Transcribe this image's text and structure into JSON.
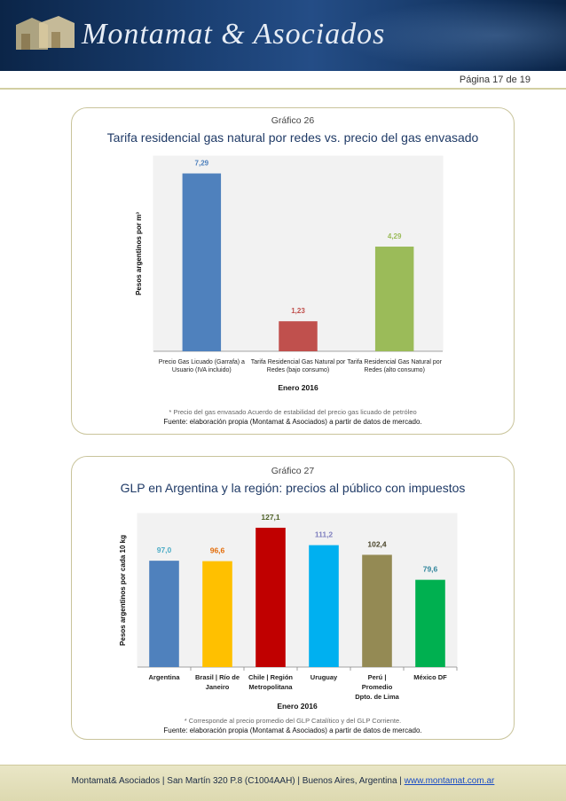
{
  "header": {
    "brand": "Montamat & Asociados",
    "page": "Página 17 de 19"
  },
  "chart26": {
    "label": "Gráfico 26",
    "title": "Tarifa residencial gas natural por redes vs. precio del gas envasado",
    "note": "* Precio del gas envasado Acuerdo de estabilidad del precio gas licuado de petróleo",
    "source": "Fuente: elaboración propia (Montamat & Asociados) a partir de datos de mercado."
  },
  "chart27": {
    "label": "Gráfico 27",
    "title": "GLP en Argentina y la región: precios al público con impuestos",
    "note": "* Corresponde al precio promedio del GLP Catalítico y del GLP Corriente.",
    "source": "Fuente: elaboración propia (Montamat & Asociados) a partir de datos de mercado."
  },
  "chart_data": [
    {
      "type": "bar",
      "ylabel": "Pesos argentinos por m³",
      "xlabel": "Enero 2016",
      "ylim": [
        0,
        8
      ],
      "grid": false,
      "categories": [
        [
          "Precio Gas Licuado (Garrafa) a",
          "Usuario (IVA incluido)"
        ],
        [
          "Tarifa Residencial Gas Natural por",
          "Redes (bajo consumo)"
        ],
        [
          "Tarifa Residencial Gas Natural por",
          "Redes (alto consumo)"
        ]
      ],
      "values": [
        7.29,
        1.23,
        4.29
      ],
      "data_labels": [
        "7,29",
        "1,23",
        "4,29"
      ],
      "colors": [
        "#4f81bd",
        "#c0504d",
        "#9bbb59"
      ],
      "label_colors": [
        "#4f81bd",
        "#c0504d",
        "#9bbb59"
      ]
    },
    {
      "type": "bar",
      "ylabel": "Pesos argentinos por cada 10 kg",
      "xlabel": "Enero 2016",
      "ylim": [
        0,
        140
      ],
      "grid": false,
      "categories": [
        [
          "Argentina"
        ],
        [
          "Brasil | Río de",
          "Janeiro"
        ],
        [
          "Chile | Región",
          "Metropolitana"
        ],
        [
          "Uruguay"
        ],
        [
          "Perú |",
          "Promedio",
          "Dpto. de Lima"
        ],
        [
          "México DF"
        ]
      ],
      "values": [
        97.0,
        96.6,
        127.1,
        111.2,
        102.4,
        79.6
      ],
      "data_labels": [
        "97,0",
        "96,6",
        "127,1",
        "111,2",
        "102,4",
        "79,6"
      ],
      "colors": [
        "#4f81bd",
        "#ffc000",
        "#c00000",
        "#00b0f0",
        "#948a54",
        "#00b050"
      ],
      "label_colors": [
        "#4bacc6",
        "#e36c09",
        "#4f6228",
        "#7f7fbf",
        "#494429",
        "#31859c"
      ]
    }
  ],
  "footer": {
    "address": "Montamat& Asociados | San Martín 320 P.8 (C1004AAH) | Buenos Aires, Argentina | ",
    "website": "www.montamat.com.ar"
  }
}
